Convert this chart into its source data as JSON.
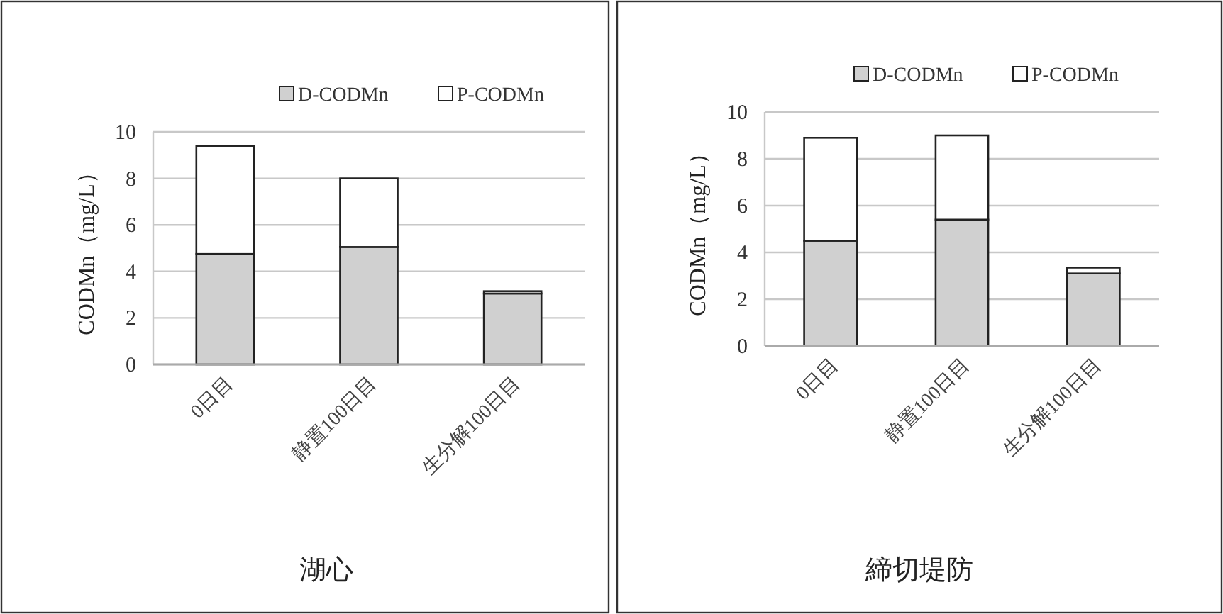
{
  "chart_data": [
    {
      "type": "bar",
      "stacked": true,
      "xlabel": "湖心",
      "ylabel": "CODMn（mg/L）",
      "categories": [
        "0日目",
        "静置100日目",
        "生分解100日目"
      ],
      "ylim": [
        0,
        10
      ],
      "yticks": [
        0,
        2,
        4,
        6,
        8,
        10
      ],
      "grid": "y",
      "legend": "top right",
      "series": [
        {
          "name": "D-CODMn",
          "color": "#d0d0d0",
          "values": [
            4.75,
            5.05,
            3.05
          ]
        },
        {
          "name": "P-CODMn",
          "color": "#ffffff",
          "values": [
            4.65,
            2.95,
            0.1
          ]
        }
      ]
    },
    {
      "type": "bar",
      "stacked": true,
      "xlabel": "締切堤防",
      "ylabel": "CODMn（mg/L）",
      "categories": [
        "0日目",
        "静置100日目",
        "生分解100日目"
      ],
      "ylim": [
        0,
        10
      ],
      "yticks": [
        0,
        2,
        4,
        6,
        8,
        10
      ],
      "grid": "y",
      "legend": "top right",
      "series": [
        {
          "name": "D-CODMn",
          "color": "#d0d0d0",
          "values": [
            4.5,
            5.4,
            3.1
          ]
        },
        {
          "name": "P-CODMn",
          "color": "#ffffff",
          "values": [
            4.4,
            3.6,
            0.25
          ]
        }
      ]
    }
  ]
}
